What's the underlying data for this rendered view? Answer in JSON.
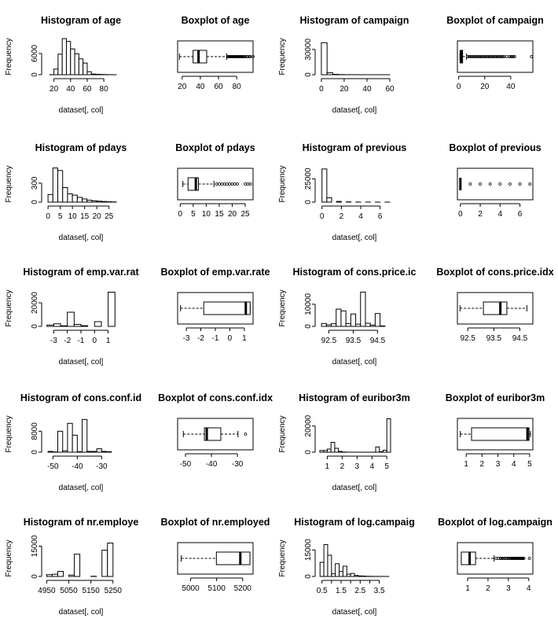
{
  "chart_data": [
    {
      "type": "histogram",
      "title": "Histogram of  age",
      "xlabel": "dataset[, col]",
      "ylabel": "Frequency",
      "xlim": [
        10,
        95
      ],
      "ylim": [
        0,
        10000
      ],
      "xticks": [
        20,
        40,
        60,
        80
      ],
      "yticks": [
        0,
        6000
      ],
      "breaks": [
        15,
        20,
        25,
        30,
        35,
        40,
        45,
        50,
        55,
        60,
        65,
        70,
        75,
        80,
        85,
        90,
        95
      ],
      "counts": [
        20,
        1600,
        5800,
        10200,
        9400,
        7300,
        5900,
        4500,
        3300,
        850,
        180,
        120,
        80,
        40,
        10,
        5
      ]
    },
    {
      "type": "boxplot",
      "title": "Boxplot of  age",
      "xlim": [
        15,
        98
      ],
      "xticks": [
        20,
        40,
        60,
        80
      ],
      "whisker_low": 17,
      "q1": 32,
      "median": 38,
      "q3": 47,
      "whisker_high": 69,
      "outliers": [
        70,
        71,
        72,
        73,
        74,
        75,
        76,
        77,
        78,
        79,
        80,
        81,
        82,
        83,
        84,
        85,
        86,
        87,
        88,
        89,
        91,
        92,
        94,
        95,
        98
      ]
    },
    {
      "type": "histogram",
      "title": "Histogram of  campaign",
      "xlabel": "dataset[, col]",
      "ylabel": "Frequency",
      "xlim": [
        -2,
        60
      ],
      "ylim": [
        0,
        42000
      ],
      "xticks": [
        0,
        20,
        40,
        60
      ],
      "yticks": [
        0,
        30000
      ],
      "breaks": [
        0,
        5,
        10,
        15,
        20,
        25,
        30,
        35,
        40,
        45,
        50,
        55,
        60
      ],
      "counts": [
        38000,
        2300,
        450,
        150,
        60,
        30,
        15,
        10,
        5,
        3,
        2,
        1
      ]
    },
    {
      "type": "boxplot",
      "title": "Boxplot of  campaign",
      "xlim": [
        -1,
        57
      ],
      "xticks": [
        0,
        20,
        40
      ],
      "whisker_low": 1,
      "q1": 1,
      "median": 2,
      "q3": 3,
      "whisker_high": 6,
      "outliers": [
        7,
        8,
        9,
        10,
        11,
        12,
        13,
        14,
        15,
        16,
        17,
        18,
        19,
        20,
        21,
        22,
        23,
        24,
        25,
        26,
        27,
        28,
        29,
        30,
        31,
        32,
        33,
        34,
        35,
        37,
        39,
        40,
        41,
        42,
        43,
        56
      ]
    },
    {
      "type": "histogram",
      "title": "Histogram of  pdays",
      "xlabel": "dataset[, col]",
      "ylabel": "Frequency",
      "xlim": [
        -1,
        28
      ],
      "ylim": [
        0,
        560
      ],
      "xticks": [
        0,
        5,
        10,
        15,
        20,
        25
      ],
      "yticks": [
        0,
        300
      ],
      "breaks": [
        0,
        2,
        4,
        6,
        8,
        10,
        12,
        14,
        16,
        18,
        20,
        22,
        24,
        26,
        28
      ],
      "counts": [
        120,
        540,
        500,
        230,
        130,
        110,
        75,
        50,
        30,
        20,
        15,
        10,
        5,
        3
      ]
    },
    {
      "type": "boxplot",
      "title": "Boxplot of  pdays",
      "xlim": [
        -1,
        28
      ],
      "xticks": [
        0,
        5,
        10,
        15,
        20,
        25
      ],
      "whisker_low": 1,
      "q1": 3,
      "median": 6,
      "q3": 7,
      "whisker_high": 13,
      "outliers": [
        14,
        15,
        16,
        17,
        18,
        19,
        20,
        21,
        22,
        25,
        26,
        27
      ]
    },
    {
      "type": "histogram",
      "title": "Histogram of  previous",
      "xlabel": "dataset[, col]",
      "ylabel": "Frequency",
      "xlim": [
        -0.3,
        7
      ],
      "ylim": [
        0,
        38000
      ],
      "xticks": [
        0,
        2,
        4,
        6
      ],
      "yticks": [
        0,
        25000
      ],
      "breaks": [
        0,
        0.5,
        1,
        1.5,
        2,
        2.5,
        3,
        3.5,
        4,
        4.5,
        5,
        5.5,
        6,
        6.5,
        7
      ],
      "counts": [
        35600,
        4600,
        0,
        750,
        0,
        220,
        0,
        70,
        0,
        18,
        0,
        5,
        0,
        1
      ]
    },
    {
      "type": "boxplot",
      "title": "Boxplot of  previous",
      "xlim": [
        -0.3,
        7.3
      ],
      "xticks": [
        0,
        2,
        4,
        6
      ],
      "whisker_low": 0,
      "q1": 0,
      "median": 0,
      "q3": 0,
      "whisker_high": 0,
      "outliers": [
        1,
        2,
        3,
        4,
        5,
        6,
        7
      ]
    },
    {
      "type": "histogram",
      "title": "Histogram of  emp.var.rat",
      "xlabel": "dataset[, col]",
      "ylabel": "Frequency",
      "xlim": [
        -3.6,
        1.6
      ],
      "ylim": [
        0,
        30000
      ],
      "xticks": [
        -3,
        -2,
        -1,
        0,
        1
      ],
      "yticks": [
        0,
        20000
      ],
      "breaks": [
        -3.5,
        -3,
        -2.5,
        -2,
        -1.5,
        -1,
        -0.5,
        0,
        0.5,
        1,
        1.5
      ],
      "counts": [
        1100,
        2200,
        500,
        12000,
        1700,
        600,
        0,
        4000,
        0,
        29000
      ]
    },
    {
      "type": "boxplot",
      "title": "Boxplot of  emp.var.rate",
      "xlim": [
        -3.6,
        1.6
      ],
      "xticks": [
        -3,
        -2,
        -1,
        0,
        1
      ],
      "whisker_low": -3.4,
      "q1": -1.8,
      "median": 1.1,
      "q3": 1.4,
      "whisker_high": 1.4,
      "outliers": []
    },
    {
      "type": "histogram",
      "title": "Histogram of  cons.price.ic",
      "xlabel": "dataset[, col]",
      "ylabel": "Frequency",
      "xlim": [
        92.1,
        95.0
      ],
      "ylim": [
        0,
        16000
      ],
      "xticks": [
        92.5,
        93.5,
        94.5
      ],
      "yticks": [
        0,
        10000
      ],
      "breaks": [
        92.2,
        92.4,
        92.6,
        92.8,
        93.0,
        93.2,
        93.4,
        93.6,
        93.8,
        94.0,
        94.2,
        94.4,
        94.6,
        94.8
      ],
      "counts": [
        1300,
        700,
        1200,
        7800,
        7000,
        1300,
        5600,
        1000,
        15500,
        1400,
        600,
        5800,
        200
      ]
    },
    {
      "type": "boxplot",
      "title": "Boxplot of  cons.price.idx",
      "xlim": [
        92.1,
        95.0
      ],
      "xticks": [
        92.5,
        93.5,
        94.5
      ],
      "whisker_low": 92.2,
      "q1": 93.1,
      "median": 93.75,
      "q3": 94.0,
      "whisker_high": 94.77,
      "outliers": []
    },
    {
      "type": "histogram",
      "title": "Histogram of  cons.conf.id",
      "xlabel": "dataset[, col]",
      "ylabel": "Frequency",
      "xlim": [
        -53,
        -24
      ],
      "ylim": [
        0,
        13500
      ],
      "xticks": [
        -50,
        -40,
        -30
      ],
      "yticks": [
        0,
        8000
      ],
      "breaks": [
        -52,
        -50,
        -48,
        -46,
        -44,
        -42,
        -40,
        -38,
        -36,
        -34,
        -32,
        -30,
        -28,
        -26
      ],
      "counts": [
        300,
        100,
        8000,
        500,
        11000,
        6500,
        200,
        12500,
        300,
        300,
        1300,
        300,
        200
      ]
    },
    {
      "type": "boxplot",
      "title": "Boxplot of  cons.conf.idx",
      "xlim": [
        -53,
        -24
      ],
      "xticks": [
        -50,
        -40,
        -30
      ],
      "whisker_low": -50.8,
      "q1": -42.7,
      "median": -41.8,
      "q3": -36.4,
      "whisker_high": -29.8,
      "outliers": [
        -26.9
      ]
    },
    {
      "type": "histogram",
      "title": "Histogram of  euribor3m",
      "xlabel": "dataset[, col]",
      "ylabel": "Frequency",
      "xlim": [
        0.45,
        5.2
      ],
      "ylim": [
        0,
        27000
      ],
      "xticks": [
        1,
        2,
        3,
        4,
        5
      ],
      "yticks": [
        0,
        20000
      ],
      "breaks": [
        0.5,
        0.75,
        1,
        1.25,
        1.5,
        1.75,
        2,
        2.25,
        2.5,
        2.75,
        3,
        3.25,
        3.5,
        3.75,
        4,
        4.25,
        4.5,
        4.75,
        5,
        5.25
      ],
      "counts": [
        1300,
        1300,
        2400,
        7500,
        3000,
        600,
        150,
        50,
        20,
        10,
        5,
        5,
        5,
        10,
        30,
        4000,
        400,
        1500,
        25500
      ]
    },
    {
      "type": "boxplot",
      "title": "Boxplot of  euribor3m",
      "xlim": [
        0.45,
        5.2
      ],
      "xticks": [
        1,
        2,
        3,
        4,
        5
      ],
      "whisker_low": 0.63,
      "q1": 1.34,
      "median": 4.86,
      "q3": 4.96,
      "whisker_high": 5.05,
      "outliers": []
    },
    {
      "type": "histogram",
      "title": "Histogram of  nr.employe",
      "xlabel": "dataset[, col]",
      "ylabel": "Frequency",
      "xlim": [
        4945,
        5265
      ],
      "ylim": [
        0,
        17500
      ],
      "xticks": [
        4950,
        5050,
        5150,
        5250
      ],
      "yticks": [
        0,
        15000
      ],
      "breaks": [
        4950,
        4975,
        5000,
        5025,
        5050,
        5075,
        5100,
        5125,
        5150,
        5175,
        5200,
        5225,
        5250
      ],
      "counts": [
        900,
        1100,
        2500,
        0,
        700,
        11000,
        0,
        0,
        100,
        0,
        13000,
        16500
      ]
    },
    {
      "type": "boxplot",
      "title": "Boxplot of  nr.employed",
      "xlim": [
        4950,
        5240
      ],
      "xticks": [
        5000,
        5100,
        5200
      ],
      "whisker_low": 4964,
      "q1": 5099,
      "median": 5191,
      "q3": 5228,
      "whisker_high": 5228,
      "outliers": []
    },
    {
      "type": "histogram",
      "title": "Histogram of  log.campaig",
      "xlabel": "dataset[, col]",
      "ylabel": "Frequency",
      "xlim": [
        0.35,
        4.05
      ],
      "ylim": [
        0,
        20000
      ],
      "xticks": [
        0.5,
        1.5,
        2.5,
        3.5
      ],
      "extra_xticks": [
        1.0,
        2.0,
        3.0
      ],
      "yticks": [
        0,
        15000
      ],
      "breaks": [
        0.4,
        0.6,
        0.8,
        1.0,
        1.2,
        1.4,
        1.6,
        1.8,
        2.0,
        2.2,
        2.4,
        2.6,
        2.8,
        3.0,
        3.2,
        3.4,
        3.6,
        3.8,
        4.0
      ],
      "counts": [
        8000,
        18000,
        12000,
        1500,
        7200,
        2800,
        5800,
        1300,
        1700,
        600,
        300,
        200,
        100,
        60,
        30,
        20,
        10,
        5
      ]
    },
    {
      "type": "boxplot",
      "title": "Boxplot of  log.campaign",
      "xlim": [
        0.5,
        4.2
      ],
      "xticks": [
        1.0,
        2.0,
        3.0,
        4.0
      ],
      "whisker_low": 0.69,
      "q1": 0.69,
      "median": 1.1,
      "q3": 1.39,
      "whisker_high": 2.3,
      "outliers": [
        2.4,
        2.5,
        2.6,
        2.64,
        2.7,
        2.77,
        2.83,
        2.89,
        2.94,
        3.0,
        3.04,
        3.09,
        3.14,
        3.18,
        3.22,
        3.26,
        3.3,
        3.33,
        3.37,
        3.4,
        3.43,
        3.47,
        3.5,
        3.53,
        3.56,
        3.58,
        3.61,
        3.64,
        3.66,
        3.69,
        3.71,
        3.76,
        4.03
      ]
    }
  ]
}
